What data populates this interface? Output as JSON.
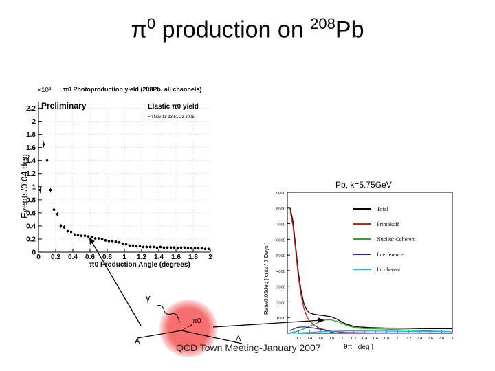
{
  "slide": {
    "title_prefix": "π",
    "title_sup1": "0",
    "title_mid": " production on ",
    "title_sup2": "208",
    "title_suffix": "Pb",
    "footer": "QCD Town Meeting-January 2007"
  },
  "colors": {
    "points": "#000000",
    "preliminary": "#1a1aa8",
    "total": "#000000",
    "primakoff": "#d81818",
    "nuclear_coherent": "#22b022",
    "interference": "#2424c0",
    "incoherent": "#18b8e8",
    "blob": "#e83838"
  },
  "diagram": {
    "gamma": "γ",
    "pi0": "π0",
    "a_left": "A",
    "a_right": "A"
  },
  "chart_data": [
    {
      "type": "scatter",
      "title": "π0 Photoproduction yield (208Pb, all channels)",
      "scale_label": "×10³",
      "preliminary": "Preliminary",
      "legend_title": "Elastic π0 yield",
      "date_stamp": "Fri Nov 18 13:51:23 2005",
      "xlabel": "π0 Production Angle (degrees)",
      "ylabel": "Events/0.04 deg",
      "xlim": [
        0,
        2
      ],
      "ylim": [
        0,
        2.3
      ],
      "xticks": [
        "0",
        "0.2",
        "0.4",
        "0.6",
        "0.8",
        "1",
        "1.2",
        "1.4",
        "1.6",
        "1.8",
        "2"
      ],
      "yticks": [
        "0",
        "0.2",
        "0.4",
        "0.6",
        "0.8",
        "1",
        "1.2",
        "1.4",
        "1.6",
        "1.8",
        "2",
        "2.2"
      ],
      "x": [
        0.02,
        0.06,
        0.1,
        0.14,
        0.18,
        0.22,
        0.26,
        0.3,
        0.34,
        0.38,
        0.42,
        0.46,
        0.5,
        0.54,
        0.58,
        0.62,
        0.66,
        0.7,
        0.74,
        0.78,
        0.82,
        0.86,
        0.9,
        0.94,
        0.98,
        1.02,
        1.06,
        1.1,
        1.14,
        1.18,
        1.22,
        1.26,
        1.3,
        1.34,
        1.38,
        1.42,
        1.46,
        1.5,
        1.54,
        1.58,
        1.62,
        1.66,
        1.7,
        1.74,
        1.78,
        1.82,
        1.86,
        1.9,
        1.94,
        1.98
      ],
      "y": [
        0.95,
        1.65,
        1.4,
        0.95,
        0.65,
        0.58,
        0.4,
        0.38,
        0.32,
        0.31,
        0.27,
        0.26,
        0.25,
        0.25,
        0.24,
        0.23,
        0.21,
        0.21,
        0.2,
        0.18,
        0.17,
        0.17,
        0.16,
        0.15,
        0.13,
        0.12,
        0.1,
        0.1,
        0.09,
        0.09,
        0.08,
        0.08,
        0.08,
        0.08,
        0.07,
        0.08,
        0.07,
        0.07,
        0.07,
        0.07,
        0.06,
        0.07,
        0.07,
        0.06,
        0.06,
        0.06,
        0.06,
        0.06,
        0.05,
        0.05
      ],
      "yerr": [
        0.05,
        0.05,
        0.05,
        0.04,
        0.04,
        0.03,
        0.03,
        0.03,
        0.02,
        0.02,
        0.02,
        0.02,
        0.02,
        0.02,
        0.02,
        0.02,
        0.02,
        0.02,
        0.02,
        0.02,
        0.02,
        0.02,
        0.02,
        0.02,
        0.02,
        0.02,
        0.02,
        0.02,
        0.02,
        0.02,
        0.02,
        0.02,
        0.02,
        0.02,
        0.02,
        0.02,
        0.02,
        0.02,
        0.02,
        0.02,
        0.02,
        0.02,
        0.02,
        0.02,
        0.02,
        0.02,
        0.02,
        0.02,
        0.02,
        0.02
      ]
    },
    {
      "type": "line",
      "title": "Pb, k=5.75GeV",
      "xlabel": "θπ [ deg ]",
      "ylabel": "Rate/0.05deg [ cnts / 7 Days ]",
      "xlim": [
        0,
        3
      ],
      "ylim": [
        0,
        9000
      ],
      "xticks": [
        "0.2",
        "0.4",
        "0.6",
        "0.8",
        "1",
        "1.2",
        "1.4",
        "1.6",
        "1.8",
        "2",
        "2.2",
        "2.4",
        "2.6",
        "2.8",
        "3"
      ],
      "yticks": [
        "1000",
        "2000",
        "3000",
        "4000",
        "5000",
        "6000",
        "7000",
        "8000",
        "9000"
      ],
      "legend": [
        "Total",
        "Primakoff",
        "Nuclear Coherent",
        "Interference",
        "Incoherent"
      ],
      "x": [
        0.05,
        0.1,
        0.15,
        0.2,
        0.25,
        0.3,
        0.35,
        0.4,
        0.5,
        0.6,
        0.7,
        0.8,
        0.9,
        1.0,
        1.1,
        1.2,
        1.3,
        1.4,
        1.5,
        1.6,
        1.8,
        2.0,
        2.2,
        2.4,
        2.6,
        2.8,
        3.0
      ],
      "series": [
        {
          "name": "Total",
          "values": [
            8000,
            7200,
            5600,
            3900,
            2700,
            1900,
            1500,
            1300,
            1200,
            1150,
            1100,
            1050,
            900,
            700,
            550,
            450,
            400,
            380,
            360,
            350,
            330,
            320,
            310,
            300,
            295,
            290,
            285
          ]
        },
        {
          "name": "Primakoff",
          "values": [
            7800,
            6900,
            5300,
            3600,
            2400,
            1600,
            1100,
            800,
            480,
            300,
            200,
            130,
            90,
            60,
            45,
            35,
            30,
            25,
            20,
            18,
            15,
            12,
            10,
            8,
            7,
            6,
            5
          ]
        },
        {
          "name": "Nuclear Coherent",
          "values": [
            30,
            60,
            100,
            150,
            210,
            280,
            360,
            440,
            600,
            750,
            850,
            850,
            760,
            620,
            480,
            380,
            320,
            300,
            290,
            280,
            260,
            230,
            200,
            170,
            140,
            120,
            100
          ]
        },
        {
          "name": "Interference",
          "values": [
            150,
            250,
            330,
            380,
            400,
            400,
            390,
            370,
            320,
            250,
            160,
            70,
            0,
            -60,
            -80,
            -70,
            -40,
            -20,
            0,
            15,
            20,
            15,
            10,
            5,
            0,
            0,
            0
          ]
        },
        {
          "name": "Incoherent",
          "values": [
            0,
            5,
            10,
            15,
            25,
            35,
            45,
            55,
            75,
            95,
            110,
            125,
            135,
            140,
            145,
            145,
            145,
            140,
            140,
            135,
            130,
            125,
            120,
            115,
            110,
            105,
            100
          ]
        }
      ]
    }
  ]
}
